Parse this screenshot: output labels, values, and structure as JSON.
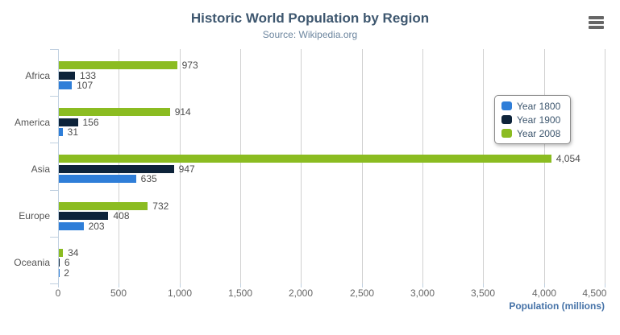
{
  "header": {
    "title": "Historic World Population by Region",
    "subtitle": "Source: Wikipedia.org"
  },
  "chart_data": {
    "type": "bar",
    "orientation": "horizontal",
    "title": "Historic World Population by Region",
    "subtitle": "Source: Wikipedia.org",
    "categories": [
      "Africa",
      "America",
      "Asia",
      "Europe",
      "Oceania"
    ],
    "series": [
      {
        "name": "Year 1800",
        "color": "#2f7ed8",
        "values": [
          107,
          31,
          635,
          203,
          2
        ]
      },
      {
        "name": "Year 1900",
        "color": "#0d233a",
        "values": [
          133,
          156,
          947,
          408,
          6
        ]
      },
      {
        "name": "Year 2008",
        "color": "#8bbc21",
        "values": [
          973,
          914,
          4054,
          732,
          34
        ]
      }
    ],
    "series_display_order_top_to_bottom": [
      "Year 2008",
      "Year 1900",
      "Year 1800"
    ],
    "xlabel": "Population (millions)",
    "ylabel": "",
    "xlim": [
      0,
      4500
    ],
    "x_tick_step": 500,
    "x_tick_labels": [
      "0",
      "500",
      "1,000",
      "1,500",
      "2,000",
      "2,500",
      "3,000",
      "3,500",
      "4,000",
      "4,500"
    ],
    "data_labels_visible": true,
    "data_label_format": "thousands-comma",
    "grid": "vertical-only",
    "legend_position": "right-inside",
    "legend_items": [
      "Year 1800",
      "Year 1900",
      "Year 2008"
    ]
  },
  "colors": {
    "background": "#FFFFFF",
    "title": "#3E576F",
    "subtitle": "#6D869F",
    "axis_title": "#4572A7",
    "tick_label": "#666666",
    "category_label": "#555555",
    "data_label": "#4D4D4D",
    "grid_line": "#D0D0D0",
    "axis_line": "#C0D0E0",
    "legend_border": "#8C8C8C",
    "menu_icon": "#666666",
    "series": {
      "Year 1800": "#2f7ed8",
      "Year 1900": "#0d233a",
      "Year 2008": "#8bbc21"
    }
  }
}
